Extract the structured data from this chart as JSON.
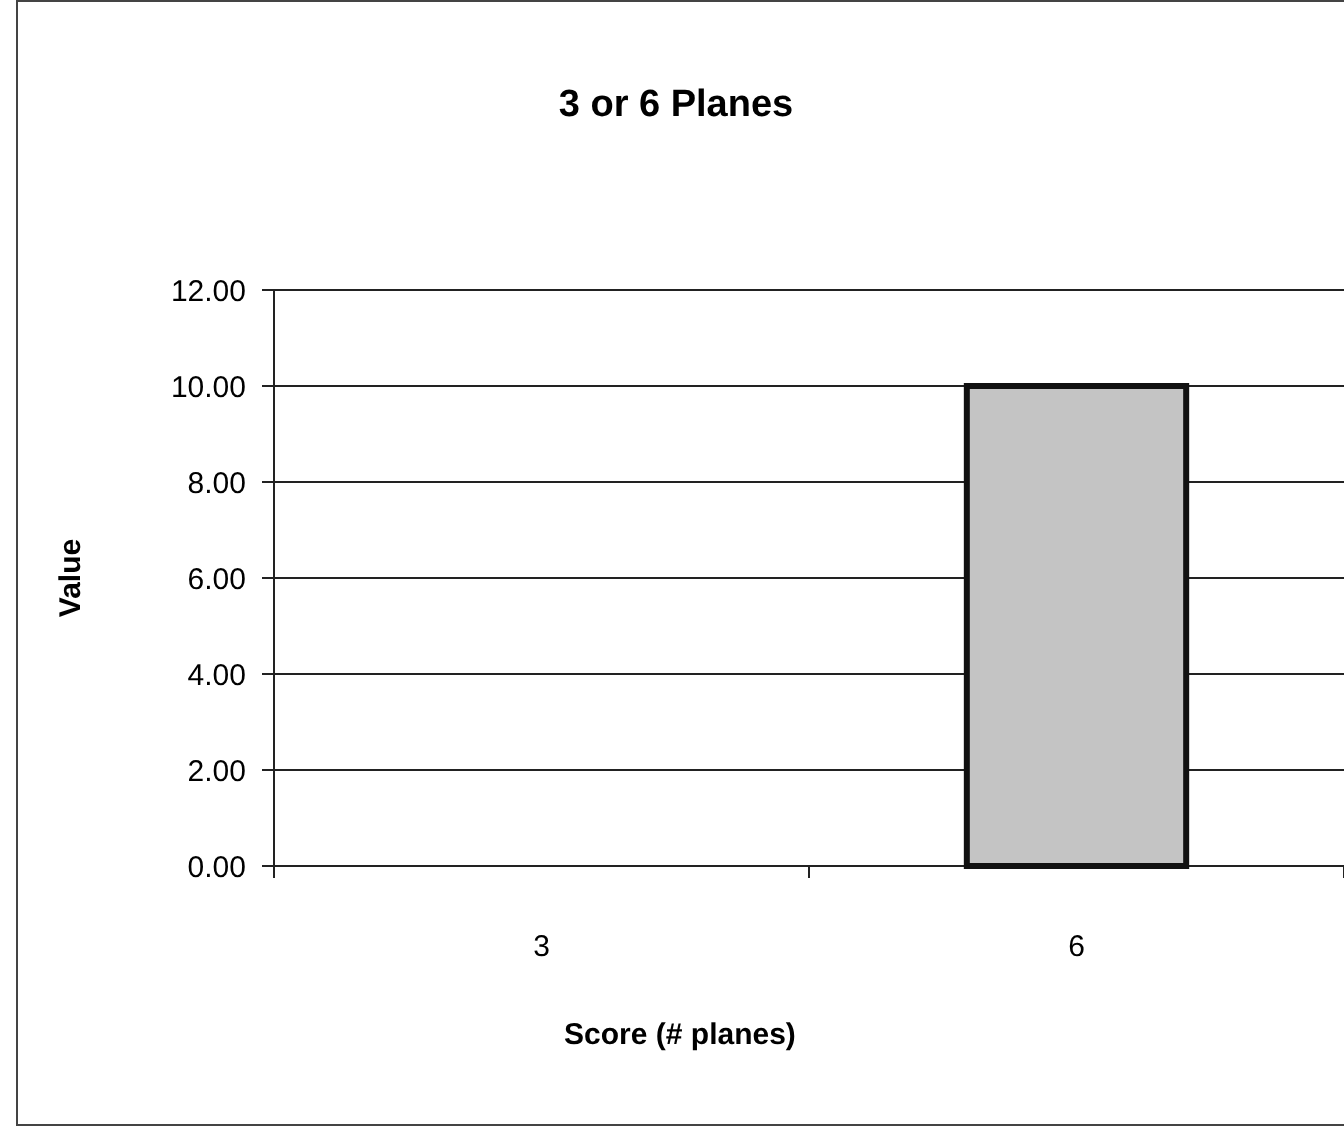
{
  "chart_data": {
    "type": "bar",
    "title": "3 or 6 Planes",
    "xlabel": "Score (# planes)",
    "ylabel": "Value",
    "categories": [
      "3",
      "6"
    ],
    "values": [
      0,
      10
    ],
    "color": "#c4c4c4",
    "ylim": [
      0,
      12
    ],
    "yticks": [
      {
        "value": 0,
        "label": "0.00"
      },
      {
        "value": 2,
        "label": "2.00"
      },
      {
        "value": 4,
        "label": "4.00"
      },
      {
        "value": 6,
        "label": "6.00"
      },
      {
        "value": 8,
        "label": "8.00"
      },
      {
        "value": 10,
        "label": "10.00"
      },
      {
        "value": 12,
        "label": "12.00"
      }
    ],
    "grid": "y"
  }
}
